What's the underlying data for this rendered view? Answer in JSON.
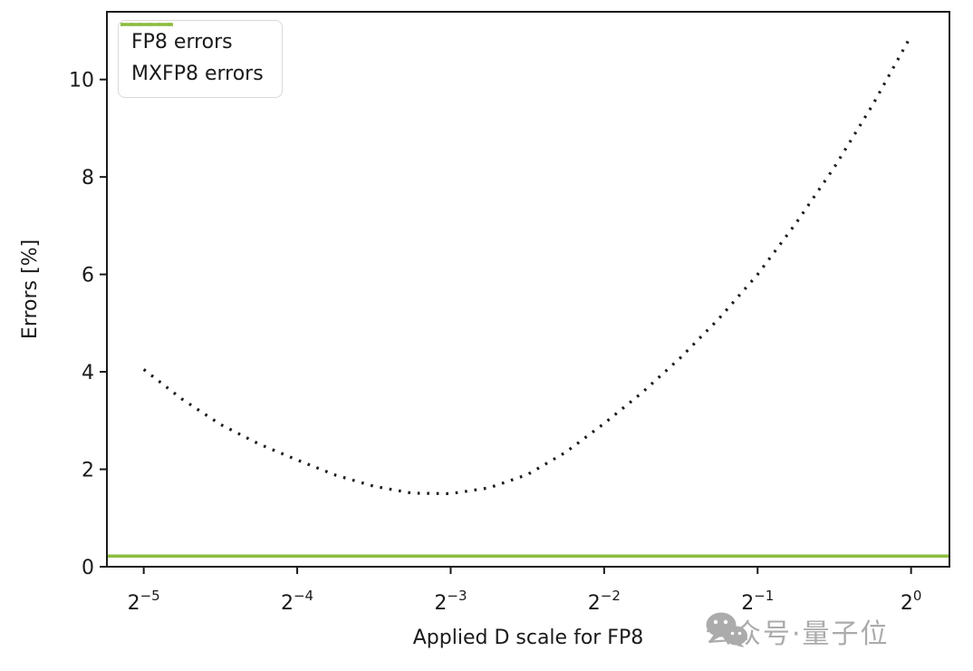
{
  "chart_data": {
    "type": "line",
    "title": "",
    "xlabel": "Applied D scale for FP8",
    "ylabel": "Errors [%]",
    "x_scale": "log2",
    "grid": false,
    "legend_position": "upper left",
    "xlim_log2": [
      -5.24,
      0.25
    ],
    "ylim": [
      0,
      11.39
    ],
    "x_ticks": {
      "base": "2",
      "exponents": [
        -5,
        -4,
        -3,
        -2,
        -1,
        0
      ],
      "labels": [
        "−5",
        "−4",
        "−3",
        "−2",
        "−1",
        "0"
      ]
    },
    "y_ticks": [
      0,
      2,
      4,
      6,
      8,
      10
    ],
    "series": [
      {
        "name": "FP8 errors",
        "style": "dotted",
        "color": "#1c1c1c",
        "width": 3.2,
        "x_log2": [
          -5,
          -4.75,
          -4.5,
          -4.25,
          -4,
          -3.75,
          -3.5,
          -3.25,
          -3,
          -2.75,
          -2.5,
          -2.25,
          -2,
          -1.75,
          -1.5,
          -1.25,
          -1,
          -0.75,
          -0.5,
          -0.25,
          0
        ],
        "y": [
          4.05,
          3.44,
          2.92,
          2.52,
          2.19,
          1.88,
          1.65,
          1.51,
          1.5,
          1.62,
          1.89,
          2.35,
          2.94,
          3.58,
          4.3,
          5.1,
          6.0,
          7.05,
          8.2,
          9.48,
          10.9
        ]
      },
      {
        "name": "MXFP8 errors",
        "style": "solid",
        "color": "#8cbd3e",
        "width": 3.5,
        "y_constant": 0.22
      }
    ],
    "axis_color": "#1a1a1a"
  },
  "watermark": {
    "text": "公众号·量子位",
    "icon": "wechat-icon",
    "color": "#ababab"
  }
}
